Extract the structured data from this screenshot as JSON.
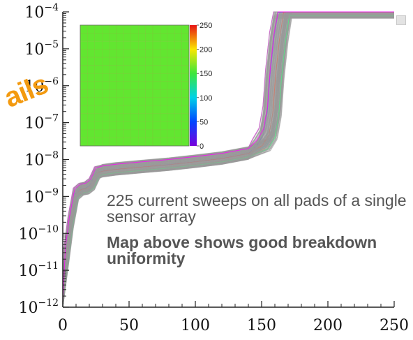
{
  "chart_data": {
    "type": "line",
    "title": "",
    "xlabel": "",
    "ylabel": "",
    "xlim": [
      0,
      250
    ],
    "ylim": [
      1e-12,
      0.0001
    ],
    "yscale": "log",
    "grid": false,
    "x_ticks": [
      "0",
      "50",
      "100",
      "150",
      "200",
      "250"
    ],
    "y_ticks": [
      {
        "base": "10",
        "exp": "−4"
      },
      {
        "base": "10",
        "exp": "−5"
      },
      {
        "base": "10",
        "exp": "−6"
      },
      {
        "base": "10",
        "exp": "−7"
      },
      {
        "base": "10",
        "exp": "−8"
      },
      {
        "base": "10",
        "exp": "−9"
      },
      {
        "base": "10",
        "exp": "−10"
      },
      {
        "base": "10",
        "exp": "−11"
      },
      {
        "base": "10",
        "exp": "−12"
      }
    ],
    "series_count": 225,
    "representative_curve": {
      "x": [
        0,
        3,
        6,
        10,
        14,
        18,
        22,
        26,
        30,
        40,
        60,
        80,
        100,
        120,
        140,
        150,
        155,
        158,
        160,
        163,
        166,
        170,
        180,
        250
      ],
      "y": [
        1e-12,
        3e-11,
        2e-10,
        1.2e-09,
        1.6e-09,
        1.7e-09,
        2.2e-09,
        4.5e-09,
        5e-09,
        5.6e-09,
        6.5e-09,
        7.5e-09,
        9e-09,
        1.1e-08,
        1.5e-08,
        2.5e-08,
        5e-08,
        2e-07,
        2e-06,
        2e-05,
        0.0001,
        0.0001,
        0.0001,
        0.0001
      ]
    },
    "inset_map": {
      "type": "heatmap",
      "rows": 15,
      "cols": 15,
      "uniform_value": 160,
      "colorbar_ticks": [
        "0",
        "50",
        "100",
        "150",
        "200",
        "250"
      ],
      "colorbar_range": [
        0,
        250
      ]
    },
    "annotations": [
      "225 current sweeps on all pads of a single sensor array",
      "Map above shows good breakdown uniformity"
    ]
  },
  "overlay": {
    "text": "ails"
  }
}
